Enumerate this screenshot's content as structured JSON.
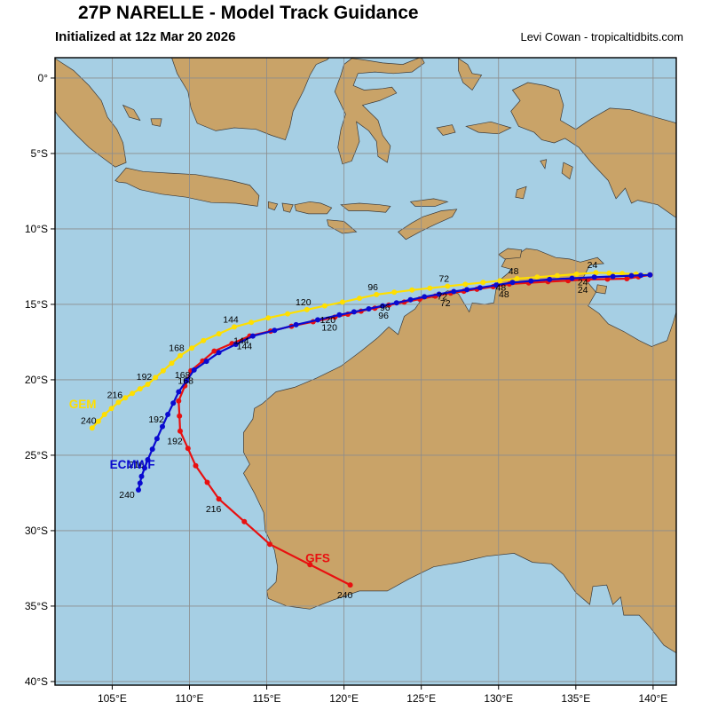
{
  "header": {
    "title": "27P NARELLE - Model Track Guidance",
    "subtitle": "Initialized at 12z Mar 20 2026",
    "credit": "Levi Cowan - tropicaltidbits.com"
  },
  "colors": {
    "ocean": "#a6cfe4",
    "land": "#c9a368",
    "coastline": "#3a3a3a",
    "grid": "#8c8c8c",
    "frame": "#000000"
  },
  "chart_data": {
    "type": "line",
    "title": "27P NARELLE - Model Track Guidance",
    "subtitle": "Initialized at 12z Mar 20 2026",
    "credit": "Levi Cowan - tropicaltidbits.com",
    "projection": {
      "lon_min": 101.3,
      "lon_max": 141.5,
      "lat_top": 1.35,
      "lat_bottom": -40.24
    },
    "grid": true,
    "x_ticks": [
      {
        "lon": 105,
        "label": "105°E"
      },
      {
        "lon": 110,
        "label": "110°E"
      },
      {
        "lon": 115,
        "label": "115°E"
      },
      {
        "lon": 120,
        "label": "120°E"
      },
      {
        "lon": 125,
        "label": "125°E"
      },
      {
        "lon": 130,
        "label": "130°E"
      },
      {
        "lon": 135,
        "label": "135°E"
      },
      {
        "lon": 140,
        "label": "140°E"
      }
    ],
    "y_ticks": [
      {
        "lat": 0,
        "label": "0°"
      },
      {
        "lat": -5,
        "label": "5°S"
      },
      {
        "lat": -10,
        "label": "10°S"
      },
      {
        "lat": -15,
        "label": "15°S"
      },
      {
        "lat": -20,
        "label": "20°S"
      },
      {
        "lat": -25,
        "label": "25°S"
      },
      {
        "lat": -30,
        "label": "30°S"
      },
      {
        "lat": -35,
        "label": "35°S"
      },
      {
        "lat": -40,
        "label": "40°S"
      }
    ],
    "hour_label_interval": 24,
    "series": [
      {
        "name": "GEM",
        "color": "#ffdf00",
        "label_pos": {
          "lon": 102.2,
          "lat": -21.9,
          "anchor": "start"
        },
        "hour_label_offset": {
          "dx": -4,
          "dy": -5
        },
        "points": [
          [
            0,
            139.8,
            -13.05
          ],
          [
            12,
            138.0,
            -12.95
          ],
          [
            24,
            136.3,
            -12.9
          ],
          [
            36,
            133.8,
            -13.1
          ],
          [
            48,
            131.2,
            -13.3
          ],
          [
            60,
            129.0,
            -13.55
          ],
          [
            72,
            126.7,
            -13.8
          ],
          [
            84,
            124.4,
            -14.05
          ],
          [
            96,
            122.1,
            -14.35
          ],
          [
            108,
            119.9,
            -14.85
          ],
          [
            120,
            117.6,
            -15.35
          ],
          [
            132,
            115.1,
            -15.9
          ],
          [
            144,
            112.9,
            -16.5
          ],
          [
            156,
            110.9,
            -17.4
          ],
          [
            168,
            109.4,
            -18.4
          ],
          [
            180,
            108.3,
            -19.4
          ],
          [
            192,
            107.3,
            -20.3
          ],
          [
            204,
            106.3,
            -20.9
          ],
          [
            216,
            105.4,
            -21.5
          ],
          [
            228,
            104.5,
            -22.3
          ],
          [
            240,
            103.7,
            -23.2
          ]
        ]
      },
      {
        "name": "GFS",
        "color": "#e81010",
        "label_pos": {
          "lon": 118.3,
          "lat": -32.1,
          "anchor": "middle"
        },
        "hour_label_offset": {
          "dx": -6,
          "dy": 15
        },
        "points": [
          [
            0,
            139.8,
            -13.05
          ],
          [
            12,
            138.3,
            -13.3
          ],
          [
            24,
            135.8,
            -13.35
          ],
          [
            36,
            133.2,
            -13.5
          ],
          [
            48,
            130.7,
            -13.65
          ],
          [
            60,
            128.6,
            -14.0
          ],
          [
            72,
            126.9,
            -14.25
          ],
          [
            84,
            124.9,
            -14.65
          ],
          [
            96,
            122.9,
            -15.05
          ],
          [
            108,
            121.1,
            -15.45
          ],
          [
            120,
            119.4,
            -15.85
          ],
          [
            132,
            116.6,
            -16.45
          ],
          [
            144,
            113.9,
            -17.1
          ],
          [
            156,
            111.6,
            -18.1
          ],
          [
            168,
            110.1,
            -19.4
          ],
          [
            180,
            109.3,
            -21.4
          ],
          [
            192,
            109.4,
            -23.4
          ],
          [
            204,
            110.4,
            -25.7
          ],
          [
            216,
            111.9,
            -27.9
          ],
          [
            228,
            115.2,
            -30.9
          ],
          [
            240,
            120.4,
            -33.6
          ]
        ]
      },
      {
        "name": "ECMWF",
        "color": "#0a0ad0",
        "label_pos": {
          "lon": 106.3,
          "lat": -25.9,
          "anchor": "middle"
        },
        "hour_label_offset": {
          "dx": -13,
          "dy": 9
        },
        "points": [
          [
            0,
            139.8,
            -13.05
          ],
          [
            12,
            138.6,
            -13.1
          ],
          [
            24,
            136.2,
            -13.2
          ],
          [
            36,
            133.3,
            -13.35
          ],
          [
            48,
            130.9,
            -13.55
          ],
          [
            60,
            128.8,
            -13.9
          ],
          [
            72,
            127.1,
            -14.15
          ],
          [
            84,
            125.2,
            -14.5
          ],
          [
            96,
            123.4,
            -14.9
          ],
          [
            108,
            121.6,
            -15.3
          ],
          [
            120,
            119.7,
            -15.7
          ],
          [
            132,
            116.9,
            -16.35
          ],
          [
            144,
            114.1,
            -17.1
          ],
          [
            156,
            111.9,
            -18.2
          ],
          [
            168,
            110.3,
            -19.35
          ],
          [
            180,
            109.3,
            -20.8
          ],
          [
            192,
            108.6,
            -22.3
          ],
          [
            204,
            107.9,
            -23.9
          ],
          [
            216,
            107.3,
            -25.3
          ],
          [
            228,
            106.9,
            -26.4
          ],
          [
            240,
            106.7,
            -27.3
          ]
        ]
      }
    ]
  }
}
